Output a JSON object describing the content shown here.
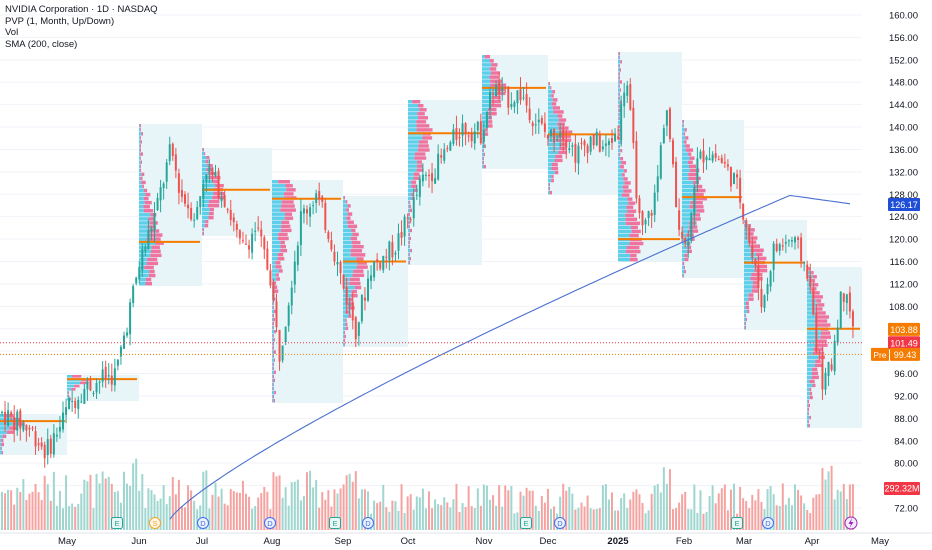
{
  "legend": {
    "title": "NVIDIA Corporation · 1D · NASDAQ",
    "pvp": "PVP (1, Month, Up/Down)",
    "vol": "Vol",
    "sma": "SMA (200, close)"
  },
  "chart_data": {
    "type": "candlestick",
    "y_ticks": [
      72,
      76,
      80,
      84,
      88,
      92,
      96,
      100,
      104,
      108,
      112,
      116,
      120,
      124,
      128,
      132,
      136,
      140,
      144,
      148,
      152,
      156,
      160
    ],
    "ylim": [
      70,
      162
    ],
    "x_labels": [
      "May",
      "Jun",
      "Jul",
      "Aug",
      "Sep",
      "Oct",
      "Nov",
      "Dec",
      "2025",
      "Feb",
      "Mar",
      "Apr",
      "May"
    ],
    "price_labels": [
      {
        "value": 126.17,
        "text": "126.17",
        "kind": "sma",
        "color": "#1f4fd6"
      },
      {
        "value": 103.88,
        "text": "103.88",
        "kind": "poc",
        "color": "#f57c00"
      },
      {
        "value": 101.49,
        "text": "101.49",
        "kind": "last",
        "color": "#f23645"
      },
      {
        "value": 99.43,
        "text": "99.43",
        "kind": "pre",
        "prefix": "Pre",
        "color": "#f57c00"
      }
    ],
    "volume_label": {
      "text": "292.32M",
      "color": "#f23645"
    },
    "monthly_poc": [
      {
        "month": "Apr",
        "price": 87.5
      },
      {
        "month": "May",
        "price": 95.0
      },
      {
        "month": "Jun",
        "price": 119.5
      },
      {
        "month": "Jul",
        "price": 128.8
      },
      {
        "month": "Aug",
        "price": 127.2
      },
      {
        "month": "Sep",
        "price": 116.0
      },
      {
        "month": "Oct",
        "price": 138.9
      },
      {
        "month": "Nov",
        "price": 147.0
      },
      {
        "month": "Dec",
        "price": 138.7
      },
      {
        "month": "Jan",
        "price": 120.0
      },
      {
        "month": "Feb",
        "price": 127.5
      },
      {
        "month": "Mar",
        "price": 115.8
      },
      {
        "month": "Apr",
        "price": 104.0
      }
    ],
    "events": [
      {
        "label": "E",
        "month": "May"
      },
      {
        "label": "S",
        "month": "Jun"
      },
      {
        "label": "D",
        "month": "Jun"
      },
      {
        "label": "D",
        "month": "Aug"
      },
      {
        "label": "E",
        "month": "Aug"
      },
      {
        "label": "D",
        "month": "Sep"
      },
      {
        "label": "E",
        "month": "Nov"
      },
      {
        "label": "D",
        "month": "Dec"
      },
      {
        "label": "E",
        "month": "Feb"
      },
      {
        "label": "D",
        "month": "Mar"
      }
    ],
    "colors": {
      "up": "#26a69a",
      "down": "#ef5350",
      "sma": "#4a6fd1",
      "poc": "#f57c00",
      "profile_up": "#45c8e8",
      "profile_down": "#ee5d8f",
      "box": "#e7f5f8"
    }
  }
}
